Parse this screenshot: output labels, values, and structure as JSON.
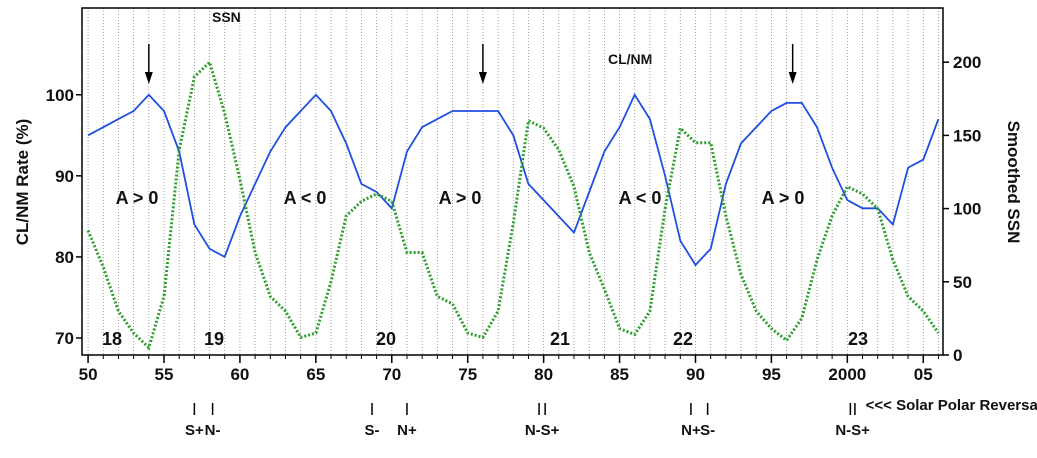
{
  "chart_data": {
    "type": "line",
    "y_label": "CL/NM Rate (%)",
    "y2_label": "Smoothed SSN",
    "x": [
      1950,
      1951,
      1952,
      1953,
      1954,
      1955,
      1956,
      1957,
      1958,
      1959,
      1960,
      1961,
      1962,
      1963,
      1964,
      1965,
      1966,
      1967,
      1968,
      1969,
      1970,
      1971,
      1972,
      1973,
      1974,
      1975,
      1976,
      1977,
      1978,
      1979,
      1980,
      1981,
      1982,
      1983,
      1984,
      1985,
      1986,
      1987,
      1988,
      1989,
      1990,
      1991,
      1992,
      1993,
      1994,
      1995,
      1996,
      1997,
      1998,
      1999,
      2000,
      2001,
      2002,
      2003,
      2004,
      2005,
      2006
    ],
    "series": [
      {
        "name": "CL/NM",
        "color": "#1f4fe0",
        "axis": "y",
        "values": [
          95,
          96,
          97,
          98,
          100,
          98,
          93,
          84,
          81,
          80,
          85,
          89,
          93,
          96,
          98,
          100,
          98,
          94,
          89,
          88,
          86,
          93,
          96,
          97,
          98,
          98,
          98,
          98,
          95,
          89,
          87,
          85,
          83,
          88,
          93,
          96,
          100,
          97,
          90,
          82,
          79,
          81,
          89,
          94,
          96,
          98,
          99,
          99,
          96,
          91,
          87,
          86,
          86,
          84,
          91,
          92,
          97
        ]
      },
      {
        "name": "SSN",
        "color": "#2e9e2e",
        "axis": "y2",
        "values": [
          85,
          60,
          30,
          15,
          5,
          40,
          140,
          190,
          200,
          165,
          120,
          70,
          40,
          30,
          12,
          15,
          50,
          95,
          105,
          110,
          105,
          70,
          70,
          40,
          35,
          15,
          12,
          30,
          90,
          160,
          155,
          140,
          115,
          70,
          45,
          18,
          14,
          30,
          100,
          155,
          145,
          145,
          95,
          55,
          30,
          18,
          10,
          25,
          65,
          95,
          115,
          110,
          100,
          65,
          40,
          30,
          15
        ]
      }
    ],
    "xlim": [
      1949.6,
      2006.3
    ],
    "xticks": [
      {
        "value": 1950,
        "label": "50"
      },
      {
        "value": 1955,
        "label": "55"
      },
      {
        "value": 1960,
        "label": "60"
      },
      {
        "value": 1965,
        "label": "65"
      },
      {
        "value": 1970,
        "label": "70"
      },
      {
        "value": 1975,
        "label": "75"
      },
      {
        "value": 1980,
        "label": "80"
      },
      {
        "value": 1985,
        "label": "85"
      },
      {
        "value": 1990,
        "label": "90"
      },
      {
        "value": 1995,
        "label": "95"
      },
      2000,
      {
        "value": 2005,
        "label": "05"
      }
    ],
    "ylim": [
      67.9,
      110.7
    ],
    "yticks": [
      70,
      80,
      90,
      100
    ],
    "y2lim": [
      0,
      237
    ],
    "y2ticks": [
      0,
      50,
      100,
      150,
      200
    ],
    "grid": true,
    "phases": [
      "A > 0",
      "A < 0",
      "A > 0",
      "A < 0",
      "A > 0"
    ],
    "cycles": [
      18,
      19,
      20,
      21,
      22,
      23
    ],
    "arrows": [
      1954,
      1976,
      1996.4
    ],
    "polar_reversals": [
      {
        "label": "S+",
        "years": [
          1957.0
        ]
      },
      {
        "label": "N-",
        "years": [
          1958.2
        ]
      },
      {
        "label": "S-",
        "years": [
          1968.7
        ]
      },
      {
        "label": "N+",
        "years": [
          1971.0
        ]
      },
      {
        "label": "N-S+",
        "years": [
          1979.7,
          1980.1
        ]
      },
      {
        "label": "N+",
        "years": [
          1989.7
        ]
      },
      {
        "label": "S-",
        "years": [
          1990.8
        ]
      },
      {
        "label": "N-S+",
        "years": [
          2000.2,
          2000.5
        ]
      }
    ],
    "reversals_title": "<<< Solar Polar Reversals"
  }
}
